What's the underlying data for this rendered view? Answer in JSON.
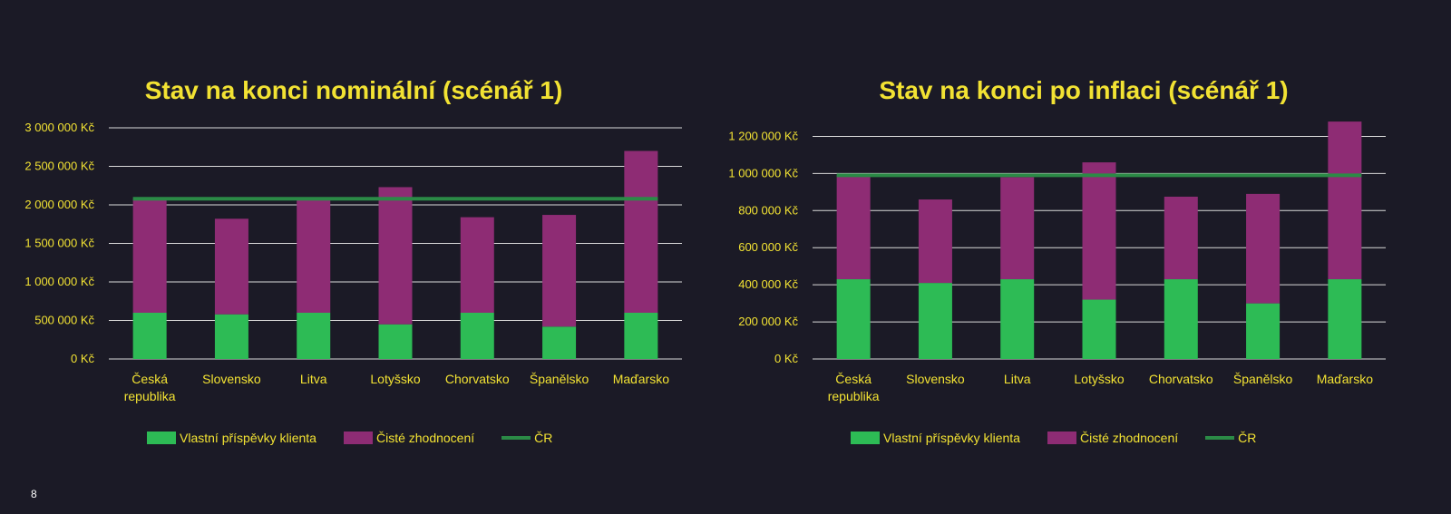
{
  "page": {
    "number": "8"
  },
  "colors": {
    "background": "#1b1a26",
    "text": "#f2e233",
    "contributions": "#2dbb55",
    "appreciation": "#8e2c74",
    "cr_line": "#2b8a46",
    "grid": "#d9d9d9"
  },
  "chart_data": [
    {
      "type": "bar",
      "stacked": true,
      "title": "Stav na konci nominální (scénář 1)",
      "categories": [
        "Česká republika",
        "Slovensko",
        "Litva",
        "Lotyšsko",
        "Chorvatsko",
        "Španělsko",
        "Maďarsko"
      ],
      "category_lines": [
        [
          "Česká",
          "republika"
        ],
        [
          "Slovensko"
        ],
        [
          "Litva"
        ],
        [
          "Lotyšsko"
        ],
        [
          "Chorvatsko"
        ],
        [
          "Španělsko"
        ],
        [
          "Maďarsko"
        ]
      ],
      "series": [
        {
          "name": "Vlastní příspěvky klienta",
          "type": "bar",
          "color": "#2dbb55",
          "values": [
            600000,
            580000,
            600000,
            450000,
            600000,
            420000,
            600000
          ]
        },
        {
          "name": "Čisté zhodnocení",
          "type": "bar",
          "color": "#8e2c74",
          "values": [
            1480000,
            1240000,
            1470000,
            1780000,
            1240000,
            1450000,
            2100000
          ]
        },
        {
          "name": "ČR",
          "type": "line",
          "color": "#2b8a46",
          "values": [
            2080000,
            2080000,
            2080000,
            2080000,
            2080000,
            2080000,
            2080000
          ]
        }
      ],
      "ylim": [
        0,
        3000000
      ],
      "yticks": [
        0,
        500000,
        1000000,
        1500000,
        2000000,
        2500000,
        3000000
      ],
      "ytick_labels": [
        "0 Kč",
        "500 000 Kč",
        "1 000 000 Kč",
        "1 500 000 Kč",
        "2 000 000 Kč",
        "2 500 000 Kč",
        "3 000 000 Kč"
      ],
      "grid": true,
      "legend": "bottom"
    },
    {
      "type": "bar",
      "stacked": true,
      "title": "Stav na konci po inflaci (scénář 1)",
      "categories": [
        "Česká republika",
        "Slovensko",
        "Litva",
        "Lotyšsko",
        "Chorvatsko",
        "Španělsko",
        "Maďarsko"
      ],
      "category_lines": [
        [
          "Česká",
          "republika"
        ],
        [
          "Slovensko"
        ],
        [
          "Litva"
        ],
        [
          "Lotyšsko"
        ],
        [
          "Chorvatsko"
        ],
        [
          "Španělsko"
        ],
        [
          "Maďarsko"
        ]
      ],
      "series": [
        {
          "name": "Vlastní příspěvky klienta",
          "type": "bar",
          "color": "#2dbb55",
          "values": [
            430000,
            410000,
            430000,
            320000,
            430000,
            300000,
            430000
          ]
        },
        {
          "name": "Čisté zhodnocení",
          "type": "bar",
          "color": "#8e2c74",
          "values": [
            560000,
            450000,
            550000,
            740000,
            445000,
            590000,
            850000
          ]
        },
        {
          "name": "ČR",
          "type": "line",
          "color": "#2b8a46",
          "values": [
            990000,
            990000,
            990000,
            990000,
            990000,
            990000,
            990000
          ]
        }
      ],
      "ylim": [
        0,
        1300000
      ],
      "yticks": [
        0,
        200000,
        400000,
        600000,
        800000,
        1000000,
        1200000
      ],
      "ytick_labels": [
        "0 Kč",
        "200 000 Kč",
        "400 000 Kč",
        "600 000 Kč",
        "800 000 Kč",
        "1 000 000 Kč",
        "1 200 000 Kč"
      ],
      "grid": true,
      "legend": "bottom"
    }
  ]
}
